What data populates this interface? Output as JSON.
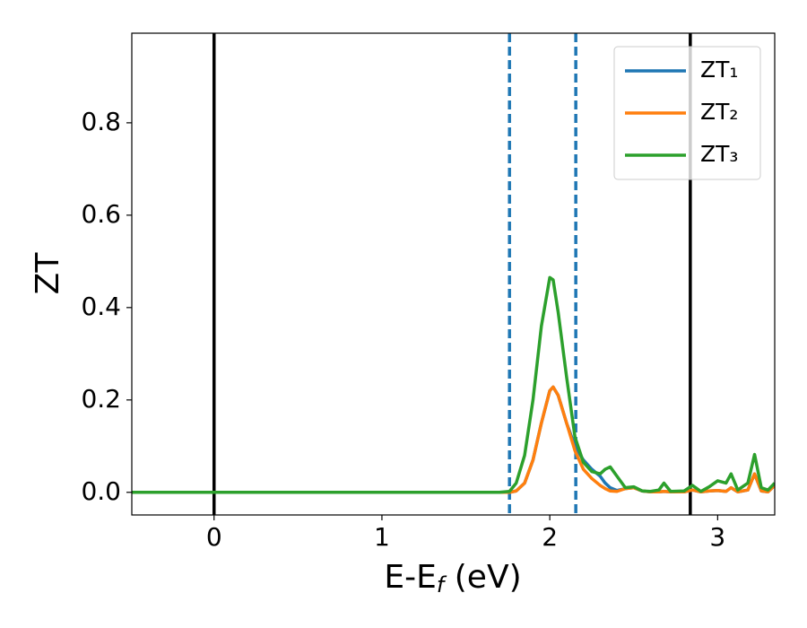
{
  "chart_data": {
    "type": "line",
    "xlabel": [
      "E-E",
      "f",
      " (eV)"
    ],
    "ylabel": "ZT",
    "xlim": [
      -0.49,
      3.34
    ],
    "ylim": [
      -0.049,
      0.994
    ],
    "xticks": [
      0,
      1,
      2,
      3
    ],
    "yticks": [
      {
        "value": 0,
        "label": "0.0"
      },
      {
        "value": 0.2,
        "label": "0.2"
      },
      {
        "value": 0.4,
        "label": "0.4"
      },
      {
        "value": 0.6,
        "label": "0.6"
      },
      {
        "value": 0.8,
        "label": "0.8"
      }
    ],
    "legend": "upper right",
    "vlines": [
      {
        "x": 0,
        "color": "#000000",
        "style": "solid"
      },
      {
        "x": 2.837,
        "color": "#000000",
        "style": "solid"
      },
      {
        "x": 1.76,
        "color": "#1f77b4",
        "style": "dashed"
      },
      {
        "x": 2.155,
        "color": "#1f77b4",
        "style": "dashed"
      }
    ],
    "x": [
      -0.49,
      1.7,
      1.76,
      1.8,
      1.85,
      1.9,
      1.95,
      2.0,
      2.02,
      2.05,
      2.1,
      2.15,
      2.2,
      2.25,
      2.3,
      2.33,
      2.36,
      2.4,
      2.45,
      2.5,
      2.55,
      2.6,
      2.65,
      2.68,
      2.72,
      2.8,
      2.85,
      2.9,
      2.95,
      3.0,
      3.05,
      3.08,
      3.12,
      3.18,
      3.22,
      3.26,
      3.3,
      3.34
    ],
    "series": [
      {
        "name": "ZT₁",
        "color": "#1f77b4",
        "values": [
          0,
          0,
          0,
          0.003,
          0.02,
          0.07,
          0.15,
          0.22,
          0.228,
          0.21,
          0.15,
          0.1,
          0.07,
          0.05,
          0.035,
          0.02,
          0.01,
          0.004,
          0.008,
          0.01,
          0.003,
          0.001,
          0.001,
          0.002,
          0.001,
          0.001,
          0.005,
          0.001,
          0.003,
          0.004,
          0.002,
          0.01,
          0.001,
          0.005,
          0.04,
          0.003,
          0.001,
          0.015
        ]
      },
      {
        "name": "ZT₂",
        "color": "#ff7f0e",
        "values": [
          0,
          0,
          0,
          0.003,
          0.02,
          0.07,
          0.15,
          0.22,
          0.228,
          0.21,
          0.15,
          0.09,
          0.05,
          0.03,
          0.015,
          0.008,
          0.003,
          0.002,
          0.008,
          0.01,
          0.003,
          0.001,
          0.001,
          0.002,
          0.001,
          0.001,
          0.005,
          0.001,
          0.003,
          0.004,
          0.002,
          0.01,
          0.001,
          0.005,
          0.04,
          0.003,
          0.001,
          0.015
        ]
      },
      {
        "name": "ZT₃",
        "color": "#2ca02c",
        "values": [
          0,
          0,
          0.002,
          0.02,
          0.08,
          0.2,
          0.36,
          0.465,
          0.46,
          0.39,
          0.25,
          0.12,
          0.065,
          0.045,
          0.04,
          0.05,
          0.055,
          0.035,
          0.01,
          0.012,
          0.003,
          0.002,
          0.005,
          0.02,
          0.002,
          0.003,
          0.015,
          0.002,
          0.012,
          0.025,
          0.02,
          0.04,
          0.005,
          0.02,
          0.082,
          0.01,
          0.005,
          0.02
        ]
      }
    ]
  }
}
